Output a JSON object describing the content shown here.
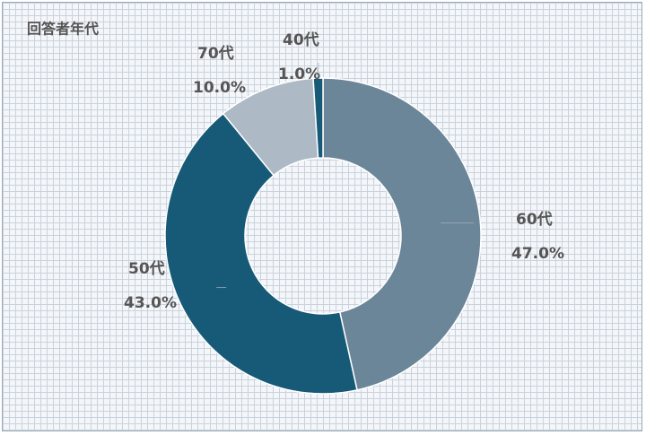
{
  "chart_data": {
    "type": "donut",
    "title": "回答者年代",
    "categories": [
      "60代",
      "50代",
      "70代",
      "40代"
    ],
    "values": [
      47.0,
      43.0,
      10.0,
      1.0
    ],
    "value_labels": [
      "47.0%",
      "43.0%",
      "10.0%",
      "1.0%"
    ],
    "colors": [
      "#6b8599",
      "#165a78",
      "#adb9c5",
      "#165a78"
    ]
  }
}
